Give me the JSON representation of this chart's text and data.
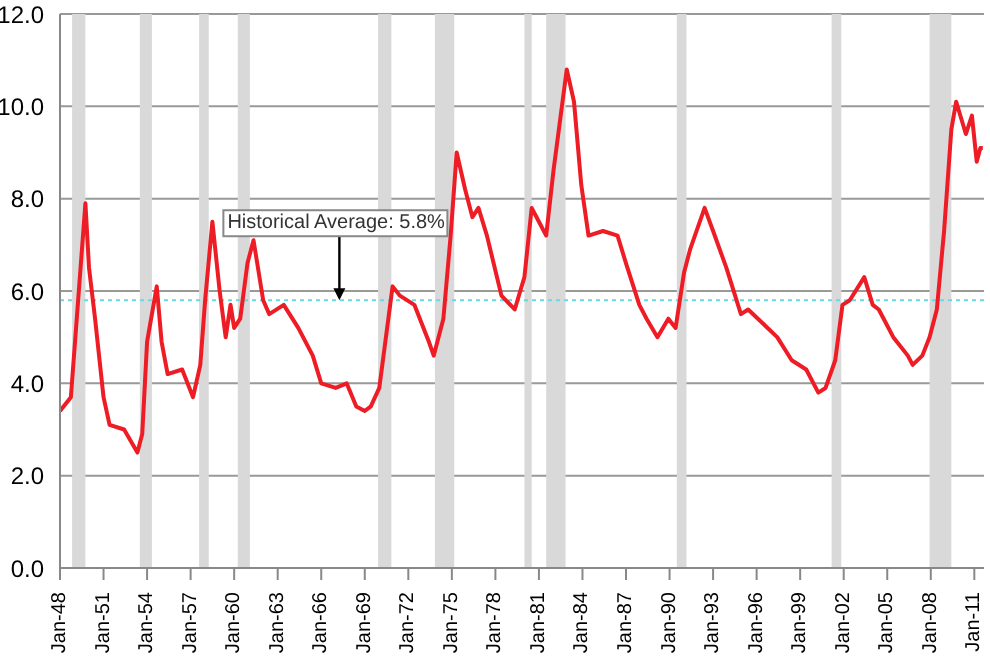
{
  "chart_data": {
    "type": "line",
    "x": [
      "1948-01",
      "1948-10",
      "1949-10",
      "1950-01",
      "1950-06",
      "1951-01",
      "1951-06",
      "1952-06",
      "1953-05",
      "1953-09",
      "1954-01",
      "1954-09",
      "1955-01",
      "1955-06",
      "1956-06",
      "1957-03",
      "1957-09",
      "1958-01",
      "1958-07",
      "1959-01",
      "1959-06",
      "1959-10",
      "1960-01",
      "1960-06",
      "1960-12",
      "1961-05",
      "1962-01",
      "1962-06",
      "1963-06",
      "1964-06",
      "1965-06",
      "1966-01",
      "1967-01",
      "1967-10",
      "1968-06",
      "1969-01",
      "1969-06",
      "1970-01",
      "1970-06",
      "1970-12",
      "1971-06",
      "1972-06",
      "1973-06",
      "1973-10",
      "1974-06",
      "1974-12",
      "1975-05",
      "1975-12",
      "1976-06",
      "1976-11",
      "1977-06",
      "1978-06",
      "1979-05",
      "1980-01",
      "1980-07",
      "1981-01",
      "1981-07",
      "1982-01",
      "1982-06",
      "1982-12",
      "1983-06",
      "1983-12",
      "1984-06",
      "1985-06",
      "1986-06",
      "1987-01",
      "1987-12",
      "1988-06",
      "1989-03",
      "1989-12",
      "1990-06",
      "1991-01",
      "1991-06",
      "1992-06",
      "1993-01",
      "1993-12",
      "1994-12",
      "1995-06",
      "1996-06",
      "1997-06",
      "1998-06",
      "1999-06",
      "2000-04",
      "2000-10",
      "2001-06",
      "2001-12",
      "2002-06",
      "2003-06",
      "2004-01",
      "2004-06",
      "2005-06",
      "2006-06",
      "2006-10",
      "2007-06",
      "2007-12",
      "2008-06",
      "2008-12",
      "2009-06",
      "2009-10",
      "2010-06",
      "2010-11",
      "2011-03",
      "2011-06",
      "2011-08"
    ],
    "series": [
      {
        "color": "#ee1c25",
        "values": [
          3.4,
          3.7,
          7.9,
          6.5,
          5.4,
          3.7,
          3.1,
          3.0,
          2.5,
          2.9,
          4.9,
          6.1,
          4.9,
          4.2,
          4.3,
          3.7,
          4.4,
          5.8,
          7.5,
          6.0,
          5.0,
          5.7,
          5.2,
          5.4,
          6.6,
          7.1,
          5.8,
          5.5,
          5.7,
          5.2,
          4.6,
          4.0,
          3.9,
          4.0,
          3.5,
          3.4,
          3.5,
          3.9,
          4.9,
          6.1,
          5.9,
          5.7,
          4.9,
          4.6,
          5.4,
          7.2,
          9.0,
          8.2,
          7.6,
          7.8,
          7.2,
          5.9,
          5.6,
          6.3,
          7.8,
          7.5,
          7.2,
          8.6,
          9.6,
          10.8,
          10.1,
          8.3,
          7.2,
          7.3,
          7.2,
          6.6,
          5.7,
          5.4,
          5.0,
          5.4,
          5.2,
          6.4,
          6.9,
          7.8,
          7.3,
          6.5,
          5.5,
          5.6,
          5.3,
          5.0,
          4.5,
          4.3,
          3.8,
          3.9,
          4.5,
          5.7,
          5.8,
          6.3,
          5.7,
          5.6,
          5.0,
          4.6,
          4.4,
          4.6,
          5.0,
          5.6,
          7.3,
          9.5,
          10.1,
          9.4,
          9.8,
          8.8,
          9.1,
          9.1
        ]
      }
    ],
    "xlim": [
      "1948-01",
      "2011-09"
    ],
    "xticks": [
      {
        "value": "1948-01",
        "label": "Jan-48"
      },
      {
        "value": "1951-01",
        "label": "Jan-51"
      },
      {
        "value": "1954-01",
        "label": "Jan-54"
      },
      {
        "value": "1957-01",
        "label": "Jan-57"
      },
      {
        "value": "1960-01",
        "label": "Jan-60"
      },
      {
        "value": "1963-01",
        "label": "Jan-63"
      },
      {
        "value": "1966-01",
        "label": "Jan-66"
      },
      {
        "value": "1969-01",
        "label": "Jan-69"
      },
      {
        "value": "1972-01",
        "label": "Jan-72"
      },
      {
        "value": "1975-01",
        "label": "Jan-75"
      },
      {
        "value": "1978-01",
        "label": "Jan-78"
      },
      {
        "value": "1981-01",
        "label": "Jan-81"
      },
      {
        "value": "1984-01",
        "label": "Jan-84"
      },
      {
        "value": "1987-01",
        "label": "Jan-87"
      },
      {
        "value": "1990-01",
        "label": "Jan-90"
      },
      {
        "value": "1993-01",
        "label": "Jan-93"
      },
      {
        "value": "1996-01",
        "label": "Jan-96"
      },
      {
        "value": "1999-01",
        "label": "Jan-99"
      },
      {
        "value": "2002-01",
        "label": "Jan-02"
      },
      {
        "value": "2005-01",
        "label": "Jan-05"
      },
      {
        "value": "2008-01",
        "label": "Jan-08"
      },
      {
        "value": "2011-01",
        "label": "Jan-11"
      }
    ],
    "ylim": [
      0,
      12
    ],
    "yticks": [
      {
        "value": 0,
        "label": "0.0"
      },
      {
        "value": 2,
        "label": "2.0"
      },
      {
        "value": 4,
        "label": "4.0"
      },
      {
        "value": 6,
        "label": "6.0"
      },
      {
        "value": 8,
        "label": "8.0"
      },
      {
        "value": 10,
        "label": "10.0"
      },
      {
        "value": 12,
        "label": "12.0"
      }
    ],
    "grid": "y",
    "marker": "none",
    "line_style": "solid",
    "ref_lines": [
      {
        "axis": "y",
        "value": 5.8,
        "color": "#66d9e8",
        "line_style": "dotted"
      }
    ],
    "annotations": [
      {
        "text": "Historical Average: 5.8%",
        "x": "1967-04",
        "y": 5.8
      }
    ],
    "bands": [
      {
        "axis": "x",
        "from": "1948-11",
        "to": "1949-10",
        "color": "#d9d9d9"
      },
      {
        "axis": "x",
        "from": "1953-07",
        "to": "1954-05",
        "color": "#d9d9d9"
      },
      {
        "axis": "x",
        "from": "1957-08",
        "to": "1958-04",
        "color": "#d9d9d9"
      },
      {
        "axis": "x",
        "from": "1960-04",
        "to": "1961-02",
        "color": "#d9d9d9"
      },
      {
        "axis": "x",
        "from": "1969-12",
        "to": "1970-11",
        "color": "#d9d9d9"
      },
      {
        "axis": "x",
        "from": "1973-11",
        "to": "1975-03",
        "color": "#d9d9d9"
      },
      {
        "axis": "x",
        "from": "1980-01",
        "to": "1980-07",
        "color": "#d9d9d9"
      },
      {
        "axis": "x",
        "from": "1981-07",
        "to": "1982-11",
        "color": "#d9d9d9"
      },
      {
        "axis": "x",
        "from": "1990-07",
        "to": "1991-03",
        "color": "#d9d9d9"
      },
      {
        "axis": "x",
        "from": "2001-03",
        "to": "2001-11",
        "color": "#d9d9d9"
      },
      {
        "axis": "x",
        "from": "2007-12",
        "to": "2009-06",
        "color": "#d9d9d9"
      }
    ]
  }
}
